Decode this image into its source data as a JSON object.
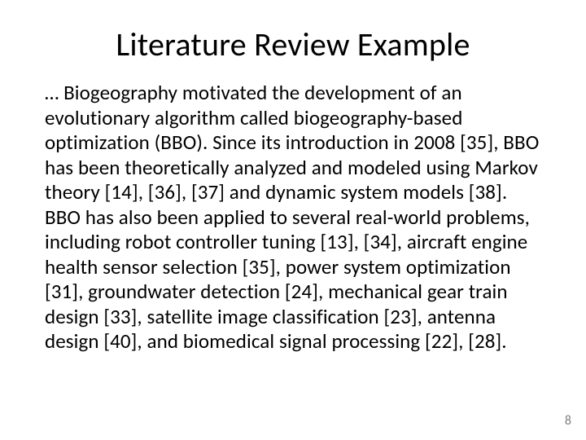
{
  "slide": {
    "title": "Literature Review Example",
    "body": "… Biogeography motivated the development of an evolutionary algorithm called biogeography-based optimization (BBO). Since its introduction in 2008 [35], BBO has been theoretically analyzed and modeled using Markov theory [14], [36], [37] and dynamic system models [38]. BBO has also been applied to several real-world problems, including robot controller tuning [13], [34], aircraft engine health sensor selection [35], power system optimization [31], groundwater detection [24], mechanical gear train design [33], satellite image classification [23], antenna design [40], and biomedical signal processing [22], [28].",
    "page_number": "8"
  },
  "style": {
    "background_color": "#ffffff",
    "text_color": "#000000",
    "page_number_color": "#808080",
    "title_fontsize": 40,
    "body_fontsize": 25,
    "page_number_fontsize": 16,
    "font_family": "Calibri"
  }
}
